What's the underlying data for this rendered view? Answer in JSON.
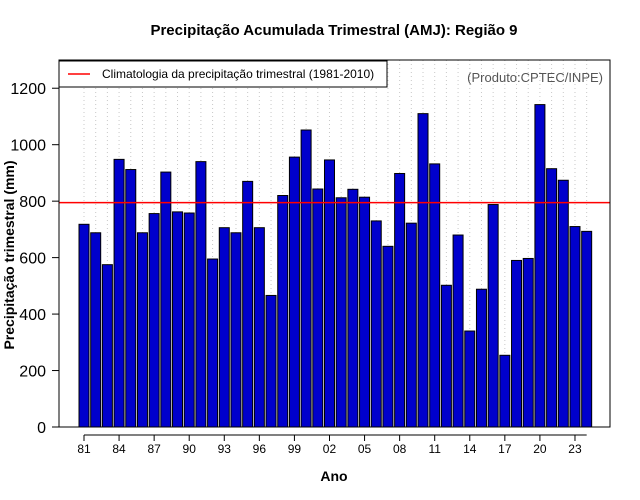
{
  "chart_data": {
    "type": "bar",
    "title": "Precipitação Acumulada Trimestral (AMJ): Região 9",
    "xlabel": "Ano",
    "ylabel": "Precipitação trimestral (mm)",
    "source_note": "(Produto:CPTEC/INPE)",
    "legend": {
      "label": "Climatologia da precipitação trimestral (1981-2010)",
      "placement": "top-left"
    },
    "climatology": 795,
    "ylim": [
      0,
      1300
    ],
    "yticks": [
      0,
      200,
      400,
      600,
      800,
      1000,
      1200
    ],
    "ytick_labels": [
      "0",
      "200",
      "400",
      "600",
      "800",
      "1000",
      "1200"
    ],
    "xtick_labels": [
      "81",
      "84",
      "87",
      "90",
      "93",
      "96",
      "99",
      "02",
      "05",
      "08",
      "11",
      "14",
      "17",
      "20",
      "23"
    ],
    "xtick_every": 3,
    "grid": true,
    "categories": [
      "81",
      "82",
      "83",
      "84",
      "85",
      "86",
      "87",
      "88",
      "89",
      "90",
      "91",
      "92",
      "93",
      "94",
      "95",
      "96",
      "97",
      "98",
      "99",
      "00",
      "01",
      "02",
      "03",
      "04",
      "05",
      "06",
      "07",
      "08",
      "09",
      "10",
      "11",
      "12",
      "13",
      "14",
      "15",
      "16",
      "17",
      "18",
      "19",
      "20",
      "21",
      "22",
      "23",
      "24"
    ],
    "values": [
      718,
      688,
      575,
      948,
      912,
      688,
      756,
      903,
      762,
      758,
      940,
      595,
      706,
      688,
      870,
      706,
      466,
      820,
      956,
      1052,
      843,
      946,
      812,
      842,
      814,
      730,
      640,
      898,
      722,
      1110,
      932,
      502,
      680,
      340,
      488,
      788,
      254,
      590,
      597,
      1142,
      915,
      874,
      710,
      693
    ],
    "colors": {
      "bar": "#0000cc",
      "bar_edge": "#000000",
      "climatology_line": "#ff0000",
      "grid": "#c8c8c8"
    }
  }
}
